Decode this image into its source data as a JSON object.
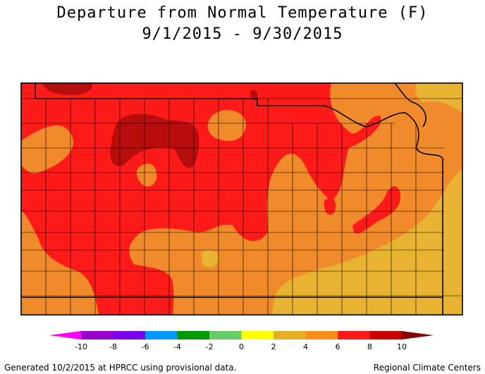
{
  "title": "Departure from Normal Temperature (F)",
  "subtitle": "9/1/2015 - 9/30/2015",
  "legend": {
    "ticks": [
      "-10",
      "-8",
      "-6",
      "-4",
      "-2",
      "0",
      "2",
      "4",
      "6",
      "8",
      "10"
    ],
    "colors": [
      "#ff00ff",
      "#9900cc",
      "#7a00ee",
      "#0099ff",
      "#009900",
      "#66cc66",
      "#ffff00",
      "#e6b020",
      "#ff8c1a",
      "#ff1a1a",
      "#cc0000",
      "#8b0000"
    ]
  },
  "footer_left": "Generated 10/2/2015 at HPRCC using provisional data.",
  "footer_right": "Regional Climate Centers"
}
